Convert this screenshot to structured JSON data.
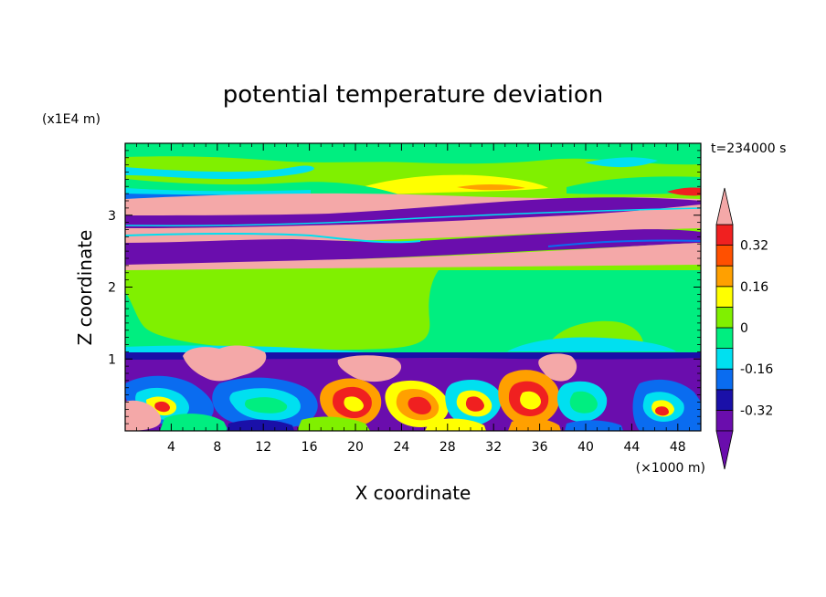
{
  "chart_data": {
    "type": "heatmap",
    "title": "potential temperature deviation",
    "xlabel": "X coordinate",
    "ylabel": "Z coordinate",
    "x_unit": "(×1000 m)",
    "y_unit": "(x1E4 m)",
    "time_label": "t=234000 s",
    "xlim": [
      0,
      50
    ],
    "ylim": [
      0,
      4
    ],
    "x_ticks": [
      4,
      8,
      12,
      16,
      20,
      24,
      28,
      32,
      36,
      40,
      44,
      48
    ],
    "y_ticks": [
      1,
      2,
      3
    ],
    "colorbar": {
      "levels": [
        -0.4,
        -0.32,
        -0.24,
        -0.16,
        -0.08,
        0,
        0.08,
        0.16,
        0.24,
        0.32,
        0.4
      ],
      "labels": [
        "0.32",
        "0.16",
        "0",
        "-0.16",
        "-0.32"
      ],
      "label_values": [
        0.32,
        0.16,
        0,
        -0.16,
        -0.32
      ],
      "colors": [
        "#6a0dad",
        "#1a10a8",
        "#0a6cf0",
        "#00e0f0",
        "#00ee80",
        "#80f000",
        "#ffff00",
        "#ffa000",
        "#ff5000",
        "#f02020"
      ],
      "over_color": "#f4a8a8",
      "under_color": "#6a0dad"
    },
    "grid": false
  }
}
